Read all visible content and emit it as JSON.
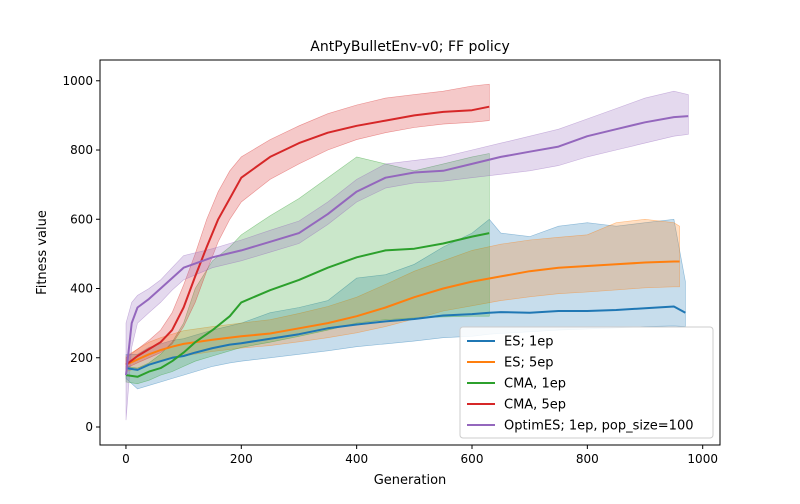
{
  "chart_data": {
    "type": "line",
    "title": "AntPyBulletEnv-v0; FF policy",
    "xlabel": "Generation",
    "ylabel": "Fitness value",
    "xlim": [
      -45,
      1030
    ],
    "ylim": [
      -52,
      1060
    ],
    "xticks": [
      0,
      200,
      400,
      600,
      800,
      1000
    ],
    "yticks": [
      0,
      200,
      400,
      600,
      800,
      1000
    ],
    "grid": false,
    "legend_position": "lower-right",
    "series": [
      {
        "name": "ES; 1ep",
        "color": "#1f77b4",
        "x": [
          0,
          20,
          40,
          60,
          80,
          100,
          120,
          150,
          180,
          200,
          250,
          300,
          350,
          400,
          450,
          500,
          550,
          600,
          630,
          650,
          700,
          750,
          800,
          850,
          900,
          950,
          970
        ],
        "y": [
          170,
          165,
          180,
          190,
          200,
          205,
          215,
          228,
          238,
          242,
          255,
          268,
          285,
          296,
          305,
          312,
          322,
          326,
          330,
          332,
          330,
          335,
          335,
          338,
          343,
          348,
          330
        ],
        "lower": [
          140,
          110,
          120,
          130,
          140,
          150,
          160,
          175,
          185,
          190,
          200,
          210,
          220,
          232,
          240,
          248,
          258,
          262,
          268,
          270,
          275,
          280,
          283,
          286,
          290,
          292,
          290
        ],
        "upper": [
          210,
          210,
          230,
          240,
          250,
          255,
          265,
          280,
          292,
          300,
          330,
          345,
          365,
          430,
          440,
          470,
          520,
          560,
          600,
          560,
          550,
          580,
          590,
          580,
          590,
          600,
          420
        ]
      },
      {
        "name": "ES; 5ep",
        "color": "#ff7f0e",
        "x": [
          0,
          20,
          40,
          60,
          80,
          100,
          150,
          200,
          250,
          300,
          350,
          400,
          450,
          500,
          550,
          600,
          650,
          700,
          750,
          800,
          850,
          900,
          950,
          960
        ],
        "y": [
          180,
          195,
          210,
          222,
          232,
          240,
          252,
          262,
          270,
          285,
          300,
          320,
          345,
          375,
          400,
          420,
          435,
          450,
          460,
          465,
          470,
          475,
          478,
          478
        ],
        "lower": [
          160,
          170,
          180,
          190,
          198,
          205,
          218,
          228,
          235,
          246,
          258,
          272,
          290,
          312,
          335,
          350,
          365,
          376,
          385,
          390,
          396,
          402,
          405,
          405
        ],
        "upper": [
          205,
          225,
          245,
          258,
          268,
          278,
          290,
          300,
          310,
          328,
          348,
          375,
          412,
          450,
          480,
          510,
          528,
          540,
          548,
          555,
          590,
          600,
          590,
          580
        ]
      },
      {
        "name": "CMA, 1ep",
        "color": "#2ca02c",
        "x": [
          0,
          20,
          40,
          60,
          80,
          100,
          120,
          150,
          180,
          200,
          250,
          300,
          350,
          400,
          450,
          500,
          550,
          600,
          630
        ],
        "y": [
          150,
          145,
          160,
          170,
          190,
          215,
          245,
          280,
          320,
          360,
          395,
          425,
          460,
          490,
          510,
          515,
          530,
          550,
          560
        ],
        "lower": [
          130,
          125,
          135,
          150,
          160,
          175,
          190,
          205,
          220,
          230,
          245,
          262,
          280,
          300,
          310,
          315,
          318,
          320,
          320
        ],
        "upper": [
          175,
          170,
          185,
          210,
          245,
          300,
          400,
          480,
          520,
          555,
          610,
          660,
          720,
          780,
          760,
          740,
          760,
          780,
          790
        ]
      },
      {
        "name": "CMA, 5ep",
        "color": "#d62728",
        "x": [
          0,
          20,
          40,
          60,
          80,
          100,
          120,
          140,
          160,
          180,
          200,
          250,
          300,
          350,
          400,
          450,
          500,
          550,
          600,
          630
        ],
        "y": [
          180,
          205,
          225,
          245,
          280,
          345,
          435,
          520,
          600,
          660,
          720,
          780,
          820,
          850,
          870,
          885,
          900,
          910,
          915,
          925
        ],
        "lower": [
          170,
          185,
          200,
          215,
          240,
          290,
          360,
          450,
          535,
          600,
          650,
          715,
          760,
          800,
          830,
          850,
          865,
          875,
          880,
          885
        ],
        "upper": [
          200,
          225,
          250,
          280,
          330,
          410,
          500,
          600,
          680,
          740,
          780,
          830,
          870,
          905,
          930,
          950,
          960,
          970,
          985,
          990
        ]
      },
      {
        "name": "OptimES; 1ep, pop_size=100",
        "color": "#9467bd",
        "x": [
          0,
          10,
          20,
          40,
          60,
          80,
          100,
          150,
          200,
          250,
          300,
          350,
          400,
          450,
          500,
          550,
          600,
          650,
          700,
          750,
          800,
          850,
          900,
          950,
          975
        ],
        "y": [
          150,
          300,
          345,
          370,
          400,
          430,
          460,
          490,
          510,
          535,
          560,
          615,
          680,
          720,
          735,
          740,
          760,
          780,
          795,
          810,
          840,
          860,
          880,
          895,
          898
        ],
        "lower": [
          20,
          230,
          300,
          330,
          360,
          395,
          425,
          460,
          480,
          505,
          530,
          585,
          650,
          690,
          705,
          710,
          720,
          730,
          740,
          755,
          780,
          800,
          820,
          840,
          845
        ],
        "upper": [
          300,
          360,
          380,
          400,
          425,
          460,
          495,
          515,
          540,
          568,
          595,
          650,
          715,
          760,
          770,
          780,
          800,
          820,
          840,
          860,
          890,
          920,
          950,
          970,
          960
        ]
      }
    ]
  }
}
